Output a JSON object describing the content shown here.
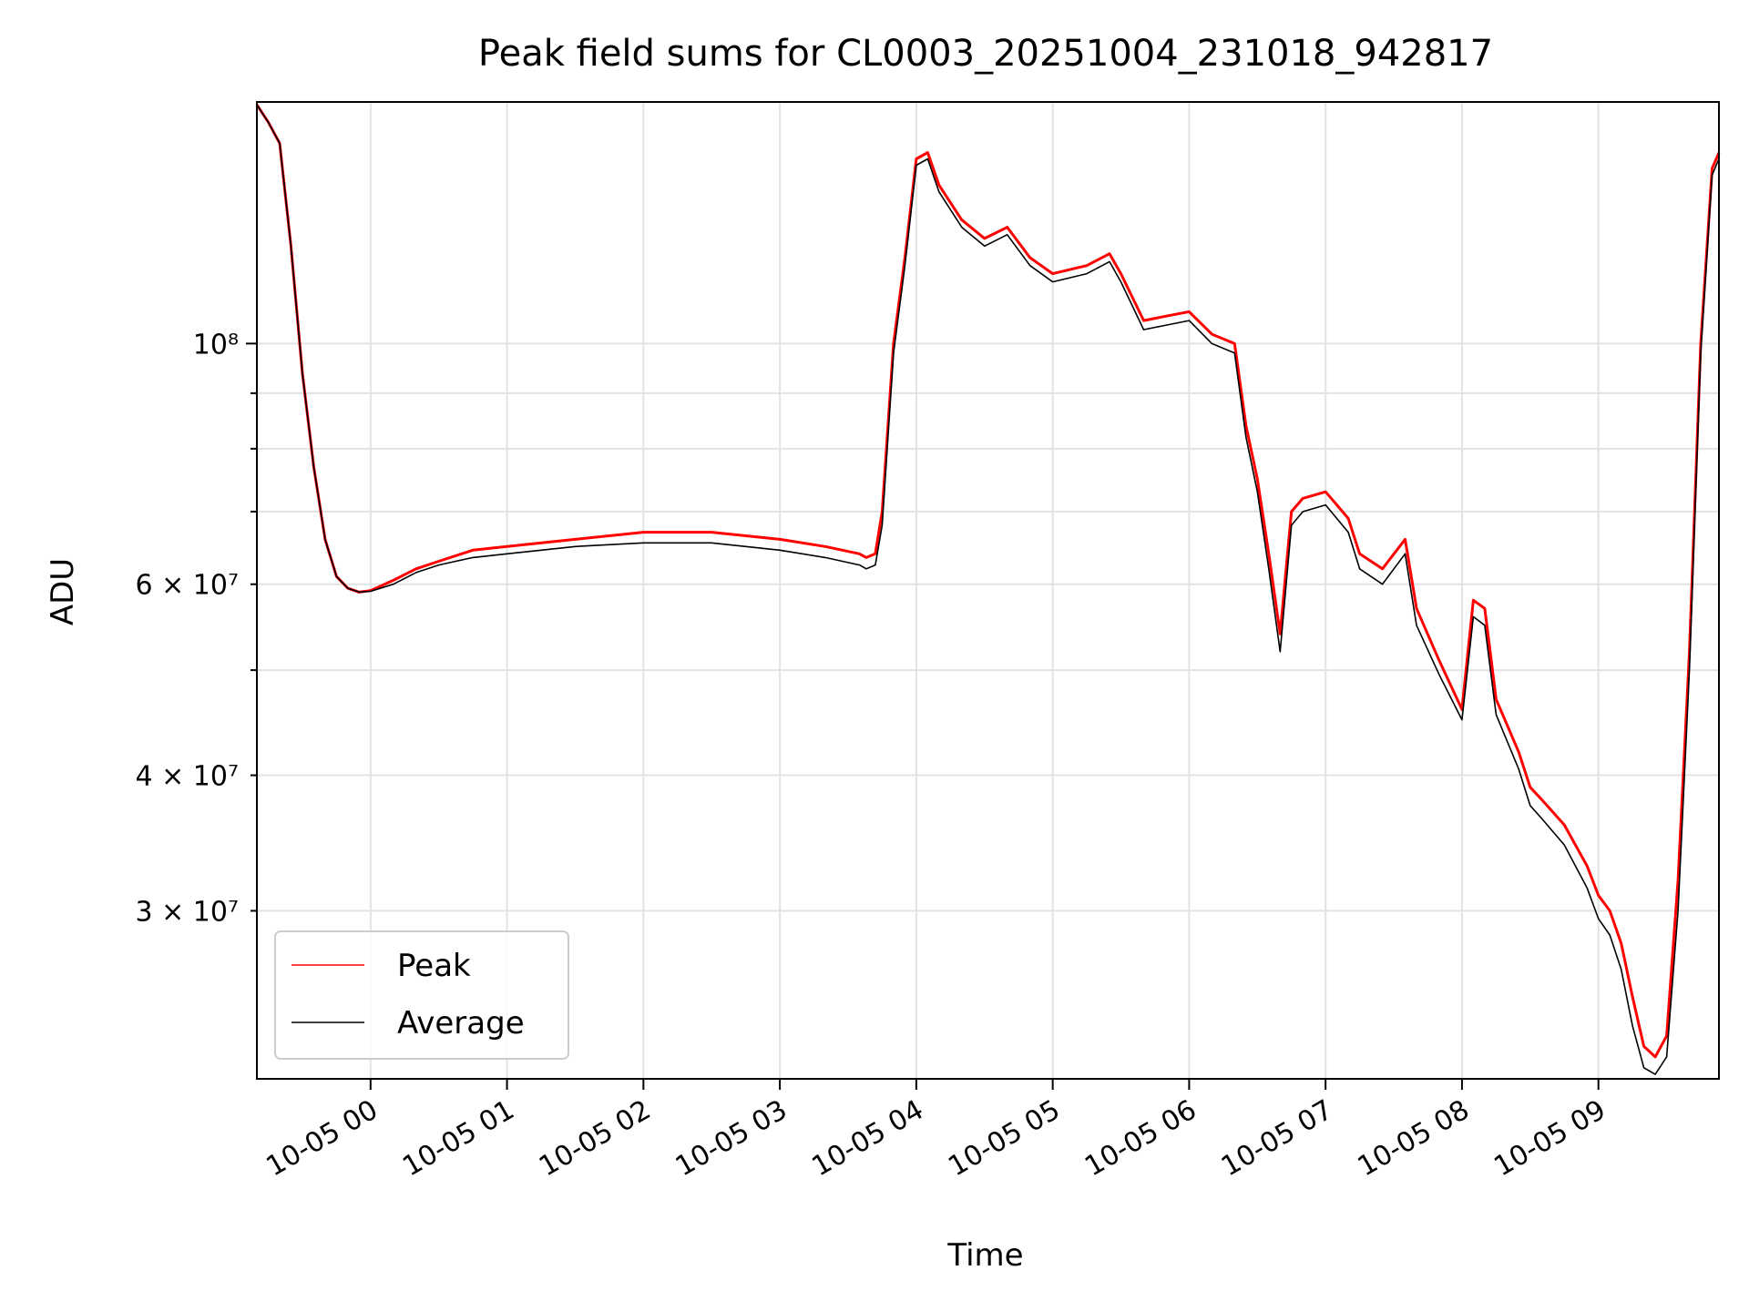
{
  "chart_data": {
    "type": "line",
    "title": "Peak field sums for CL0003_20251004_231018_942817",
    "xlabel": "Time",
    "ylabel": "ADU",
    "yscale": "log",
    "xlim": [
      "2025-10-04 23:10",
      "2025-10-05 09:53"
    ],
    "ylim": [
      21000000,
      167000000
    ],
    "grid": true,
    "legend_position": "lower-left",
    "x_ticks": [
      "10-05 00",
      "10-05 01",
      "10-05 02",
      "10-05 03",
      "10-05 04",
      "10-05 05",
      "10-05 06",
      "10-05 07",
      "10-05 08",
      "10-05 09"
    ],
    "y_tick_labels": [
      {
        "value": 30000000,
        "label": "3 × 10⁷"
      },
      {
        "value": 40000000,
        "label": "4 × 10⁷"
      },
      {
        "value": 60000000,
        "label": "6 × 10⁷"
      },
      {
        "value": 100000000,
        "label": "10⁸"
      }
    ],
    "series": [
      {
        "name": "Peak",
        "color": "#ff0000",
        "x": [
          "2025-10-04 23:10",
          "2025-10-04 23:15",
          "2025-10-04 23:20",
          "2025-10-04 23:25",
          "2025-10-04 23:30",
          "2025-10-04 23:35",
          "2025-10-04 23:40",
          "2025-10-04 23:45",
          "2025-10-04 23:50",
          "2025-10-04 23:55",
          "2025-10-05 00:00",
          "2025-10-05 00:10",
          "2025-10-05 00:20",
          "2025-10-05 00:30",
          "2025-10-05 00:45",
          "2025-10-05 01:00",
          "2025-10-05 01:30",
          "2025-10-05 02:00",
          "2025-10-05 02:30",
          "2025-10-05 03:00",
          "2025-10-05 03:20",
          "2025-10-05 03:35",
          "2025-10-05 03:38",
          "2025-10-05 03:42",
          "2025-10-05 03:45",
          "2025-10-05 03:50",
          "2025-10-05 03:55",
          "2025-10-05 04:00",
          "2025-10-05 04:05",
          "2025-10-05 04:10",
          "2025-10-05 04:20",
          "2025-10-05 04:30",
          "2025-10-05 04:40",
          "2025-10-05 04:50",
          "2025-10-05 05:00",
          "2025-10-05 05:15",
          "2025-10-05 05:25",
          "2025-10-05 05:30",
          "2025-10-05 05:40",
          "2025-10-05 05:50",
          "2025-10-05 06:00",
          "2025-10-05 06:10",
          "2025-10-05 06:20",
          "2025-10-05 06:25",
          "2025-10-05 06:30",
          "2025-10-05 06:35",
          "2025-10-05 06:40",
          "2025-10-05 06:45",
          "2025-10-05 06:50",
          "2025-10-05 07:00",
          "2025-10-05 07:10",
          "2025-10-05 07:15",
          "2025-10-05 07:25",
          "2025-10-05 07:35",
          "2025-10-05 07:40",
          "2025-10-05 07:50",
          "2025-10-05 08:00",
          "2025-10-05 08:05",
          "2025-10-05 08:10",
          "2025-10-05 08:15",
          "2025-10-05 08:25",
          "2025-10-05 08:30",
          "2025-10-05 08:35",
          "2025-10-05 08:45",
          "2025-10-05 08:55",
          "2025-10-05 09:00",
          "2025-10-05 09:05",
          "2025-10-05 09:10",
          "2025-10-05 09:15",
          "2025-10-05 09:20",
          "2025-10-05 09:25",
          "2025-10-05 09:30",
          "2025-10-05 09:35",
          "2025-10-05 09:40",
          "2025-10-05 09:45",
          "2025-10-05 09:50",
          "2025-10-05 09:53"
        ],
        "values": [
          166000000,
          160000000,
          153000000,
          123000000,
          94000000,
          77000000,
          66000000,
          61000000,
          59500000,
          59000000,
          59200000,
          60500000,
          62000000,
          63000000,
          64500000,
          65000000,
          66000000,
          67000000,
          67000000,
          66000000,
          65000000,
          64000000,
          63500000,
          64000000,
          70000000,
          100000000,
          120000000,
          148000000,
          150000000,
          140000000,
          130000000,
          125000000,
          128000000,
          120000000,
          116000000,
          118000000,
          121000000,
          116000000,
          105000000,
          106000000,
          107000000,
          102000000,
          100000000,
          84000000,
          75000000,
          64000000,
          54000000,
          70000000,
          72000000,
          73000000,
          69000000,
          64000000,
          62000000,
          66000000,
          57000000,
          51000000,
          46000000,
          58000000,
          57000000,
          47000000,
          42000000,
          39000000,
          38000000,
          36000000,
          33000000,
          31000000,
          30000000,
          28000000,
          25000000,
          22500000,
          22000000,
          23000000,
          32000000,
          52000000,
          100000000,
          145000000,
          150000000
        ]
      },
      {
        "name": "Average",
        "color": "#000000",
        "x": [
          "2025-10-04 23:10",
          "2025-10-04 23:15",
          "2025-10-04 23:20",
          "2025-10-04 23:25",
          "2025-10-04 23:30",
          "2025-10-04 23:35",
          "2025-10-04 23:40",
          "2025-10-04 23:45",
          "2025-10-04 23:50",
          "2025-10-04 23:55",
          "2025-10-05 00:00",
          "2025-10-05 00:10",
          "2025-10-05 00:20",
          "2025-10-05 00:30",
          "2025-10-05 00:45",
          "2025-10-05 01:00",
          "2025-10-05 01:30",
          "2025-10-05 02:00",
          "2025-10-05 02:30",
          "2025-10-05 03:00",
          "2025-10-05 03:20",
          "2025-10-05 03:35",
          "2025-10-05 03:38",
          "2025-10-05 03:42",
          "2025-10-05 03:45",
          "2025-10-05 03:50",
          "2025-10-05 03:55",
          "2025-10-05 04:00",
          "2025-10-05 04:05",
          "2025-10-05 04:10",
          "2025-10-05 04:20",
          "2025-10-05 04:30",
          "2025-10-05 04:40",
          "2025-10-05 04:50",
          "2025-10-05 05:00",
          "2025-10-05 05:15",
          "2025-10-05 05:25",
          "2025-10-05 05:30",
          "2025-10-05 05:40",
          "2025-10-05 05:50",
          "2025-10-05 06:00",
          "2025-10-05 06:10",
          "2025-10-05 06:20",
          "2025-10-05 06:25",
          "2025-10-05 06:30",
          "2025-10-05 06:35",
          "2025-10-05 06:40",
          "2025-10-05 06:45",
          "2025-10-05 06:50",
          "2025-10-05 07:00",
          "2025-10-05 07:10",
          "2025-10-05 07:15",
          "2025-10-05 07:25",
          "2025-10-05 07:35",
          "2025-10-05 07:40",
          "2025-10-05 07:50",
          "2025-10-05 08:00",
          "2025-10-05 08:05",
          "2025-10-05 08:10",
          "2025-10-05 08:15",
          "2025-10-05 08:25",
          "2025-10-05 08:30",
          "2025-10-05 08:35",
          "2025-10-05 08:45",
          "2025-10-05 08:55",
          "2025-10-05 09:00",
          "2025-10-05 09:05",
          "2025-10-05 09:10",
          "2025-10-05 09:15",
          "2025-10-05 09:20",
          "2025-10-05 09:25",
          "2025-10-05 09:30",
          "2025-10-05 09:35",
          "2025-10-05 09:40",
          "2025-10-05 09:45",
          "2025-10-05 09:50",
          "2025-10-05 09:53"
        ],
        "values": [
          166000000,
          160000000,
          153000000,
          123000000,
          94000000,
          77000000,
          66000000,
          61000000,
          59500000,
          59000000,
          59100000,
          60000000,
          61500000,
          62500000,
          63500000,
          64000000,
          65000000,
          65500000,
          65500000,
          64500000,
          63500000,
          62500000,
          62000000,
          62500000,
          68000000,
          98000000,
          118000000,
          146000000,
          148000000,
          138000000,
          128000000,
          123000000,
          126000000,
          118000000,
          114000000,
          116000000,
          119000000,
          114000000,
          103000000,
          104000000,
          105000000,
          100000000,
          98000000,
          82000000,
          73000000,
          62000000,
          52000000,
          68000000,
          70000000,
          71000000,
          67000000,
          62000000,
          60000000,
          64000000,
          55000000,
          49500000,
          45000000,
          56000000,
          55000000,
          45500000,
          40500000,
          37500000,
          36500000,
          34500000,
          31500000,
          29500000,
          28500000,
          26500000,
          23500000,
          21500000,
          21200000,
          22000000,
          30000000,
          50000000,
          98000000,
          143000000,
          148000000
        ]
      }
    ]
  }
}
